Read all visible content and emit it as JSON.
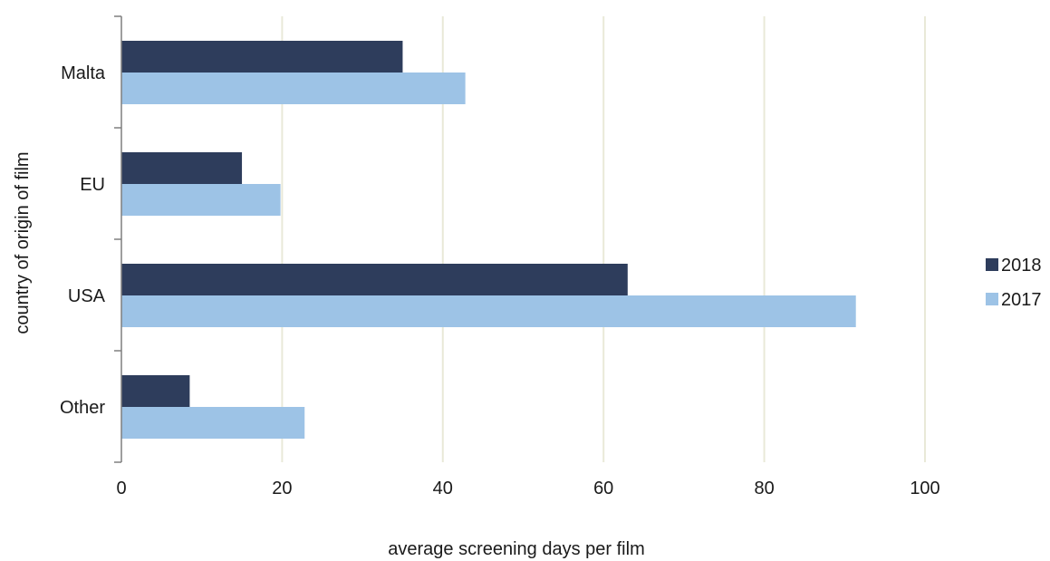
{
  "chart_data": {
    "type": "bar",
    "orientation": "horizontal",
    "title": "",
    "xlabel": "average screening days per film",
    "ylabel": "country of origin of film",
    "categories": [
      "Malta",
      "EU",
      "USA",
      "Other"
    ],
    "series": [
      {
        "name": "2018",
        "values": [
          35,
          15,
          63,
          8.5
        ]
      },
      {
        "name": "2017",
        "values": [
          42.8,
          19.8,
          91.4,
          22.8
        ]
      }
    ],
    "xlim": [
      0,
      100
    ],
    "xticks": [
      0,
      20,
      40,
      60,
      80,
      100
    ],
    "grid": true,
    "legend": "right",
    "colors": {
      "2018": "#2e3d5c",
      "2017": "#9dc3e6",
      "grid": "#e9e9d8",
      "axis": "#7f7f7f"
    }
  }
}
